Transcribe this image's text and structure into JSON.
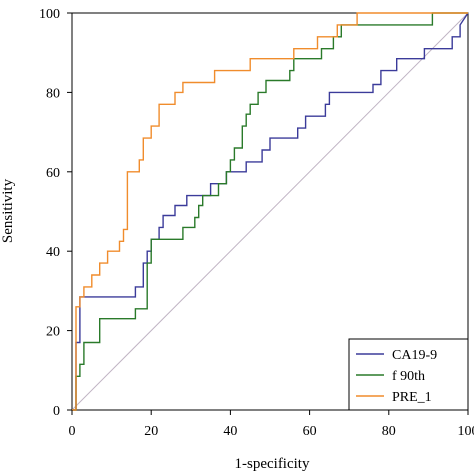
{
  "chart_data": {
    "type": "line",
    "title": "",
    "xlabel": "1-specificity",
    "ylabel": "Sensitivity",
    "xlim": [
      0,
      100
    ],
    "ylim": [
      0,
      100
    ],
    "x_ticks": [
      "0",
      "20",
      "40",
      "60",
      "80",
      "100"
    ],
    "y_ticks": [
      "0",
      "20",
      "40",
      "60",
      "80",
      "100"
    ],
    "grid": false,
    "legend_position": "bottom-right",
    "reference_line": {
      "from": [
        0,
        0
      ],
      "to": [
        100,
        100
      ],
      "color": "#c0b4c4"
    },
    "series": [
      {
        "name": "CA19-9",
        "color": "#3b3b9a",
        "points": [
          [
            0,
            0
          ],
          [
            1,
            0
          ],
          [
            1,
            17
          ],
          [
            2,
            17
          ],
          [
            2,
            28.5
          ],
          [
            16,
            28.5
          ],
          [
            16,
            31
          ],
          [
            18,
            31
          ],
          [
            18,
            37
          ],
          [
            19,
            37
          ],
          [
            19,
            40
          ],
          [
            20,
            40
          ],
          [
            20,
            43
          ],
          [
            22,
            43
          ],
          [
            22,
            46
          ],
          [
            23,
            46
          ],
          [
            23,
            49
          ],
          [
            26,
            49
          ],
          [
            26,
            51.5
          ],
          [
            29,
            51.5
          ],
          [
            29,
            54
          ],
          [
            35,
            54
          ],
          [
            35,
            57
          ],
          [
            39,
            57
          ],
          [
            39,
            60
          ],
          [
            44,
            60
          ],
          [
            44,
            62.5
          ],
          [
            48,
            62.5
          ],
          [
            48,
            65.5
          ],
          [
            50,
            65.5
          ],
          [
            50,
            68.5
          ],
          [
            57,
            68.5
          ],
          [
            57,
            71
          ],
          [
            59,
            71
          ],
          [
            59,
            74
          ],
          [
            64,
            74
          ],
          [
            64,
            77
          ],
          [
            65,
            77
          ],
          [
            65,
            80
          ],
          [
            76,
            80
          ],
          [
            76,
            82
          ],
          [
            78,
            82
          ],
          [
            78,
            85.5
          ],
          [
            82,
            85.5
          ],
          [
            82,
            88.5
          ],
          [
            89,
            88.5
          ],
          [
            89,
            91
          ],
          [
            96,
            91
          ],
          [
            96,
            94
          ],
          [
            98,
            94
          ],
          [
            98,
            97
          ],
          [
            100,
            100
          ]
        ]
      },
      {
        "name": "f 90th",
        "color": "#2a7a2a",
        "points": [
          [
            0,
            0
          ],
          [
            1,
            0
          ],
          [
            1,
            8.5
          ],
          [
            2,
            8.5
          ],
          [
            2,
            11.5
          ],
          [
            3,
            11.5
          ],
          [
            3,
            17
          ],
          [
            7,
            17
          ],
          [
            7,
            23
          ],
          [
            16,
            23
          ],
          [
            16,
            25.5
          ],
          [
            19,
            25.5
          ],
          [
            19,
            37
          ],
          [
            20,
            37
          ],
          [
            20,
            43
          ],
          [
            28,
            43
          ],
          [
            28,
            46
          ],
          [
            31,
            46
          ],
          [
            31,
            48.5
          ],
          [
            32,
            48.5
          ],
          [
            32,
            51.5
          ],
          [
            33,
            51.5
          ],
          [
            33,
            54
          ],
          [
            37,
            54
          ],
          [
            37,
            57
          ],
          [
            39,
            57
          ],
          [
            39,
            60
          ],
          [
            40,
            60
          ],
          [
            40,
            63
          ],
          [
            41,
            63
          ],
          [
            41,
            66
          ],
          [
            43,
            66
          ],
          [
            43,
            71.5
          ],
          [
            44,
            71.5
          ],
          [
            44,
            74.5
          ],
          [
            45,
            74.5
          ],
          [
            45,
            77
          ],
          [
            47,
            77
          ],
          [
            47,
            80
          ],
          [
            49,
            80
          ],
          [
            49,
            83
          ],
          [
            55,
            83
          ],
          [
            55,
            85.5
          ],
          [
            56,
            85.5
          ],
          [
            56,
            88.5
          ],
          [
            63,
            88.5
          ],
          [
            63,
            91
          ],
          [
            66,
            91
          ],
          [
            66,
            94
          ],
          [
            68,
            94
          ],
          [
            68,
            97
          ],
          [
            91,
            97
          ],
          [
            91,
            100
          ],
          [
            100,
            100
          ]
        ]
      },
      {
        "name": "PRE_1",
        "color": "#f08c2c",
        "points": [
          [
            0,
            0
          ],
          [
            1,
            0
          ],
          [
            1,
            26
          ],
          [
            2,
            26
          ],
          [
            2,
            28.5
          ],
          [
            3,
            28.5
          ],
          [
            3,
            31
          ],
          [
            5,
            31
          ],
          [
            5,
            34
          ],
          [
            7,
            34
          ],
          [
            7,
            37
          ],
          [
            9,
            37
          ],
          [
            9,
            40
          ],
          [
            12,
            40
          ],
          [
            12,
            42.5
          ],
          [
            13,
            42.5
          ],
          [
            13,
            45.5
          ],
          [
            14,
            45.5
          ],
          [
            14,
            60
          ],
          [
            17,
            60
          ],
          [
            17,
            63
          ],
          [
            18,
            63
          ],
          [
            18,
            68.5
          ],
          [
            20,
            68.5
          ],
          [
            20,
            71.5
          ],
          [
            22,
            71.5
          ],
          [
            22,
            77
          ],
          [
            26,
            77
          ],
          [
            26,
            80
          ],
          [
            28,
            80
          ],
          [
            28,
            82.5
          ],
          [
            36,
            82.5
          ],
          [
            36,
            85.5
          ],
          [
            45,
            85.5
          ],
          [
            45,
            88.5
          ],
          [
            56,
            88.5
          ],
          [
            56,
            91
          ],
          [
            62,
            91
          ],
          [
            62,
            94
          ],
          [
            67,
            94
          ],
          [
            67,
            97
          ],
          [
            72,
            97
          ],
          [
            72,
            100
          ],
          [
            100,
            100
          ]
        ]
      }
    ]
  }
}
